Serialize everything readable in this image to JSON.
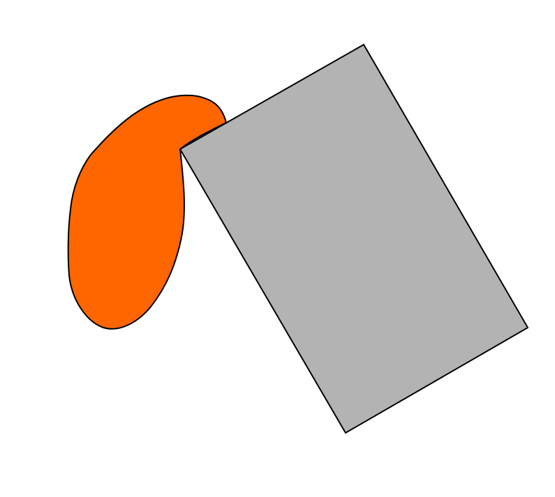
{
  "scene": {
    "background_color": "#ffffff",
    "shapes": [
      {
        "name": "orange-blob",
        "kind": "freeform-blob",
        "fill": "#ff6600",
        "stroke": "#000000"
      },
      {
        "name": "gray-rectangle",
        "kind": "rotated-rectangle",
        "fill": "#b3b3b3",
        "stroke": "#000000"
      }
    ]
  }
}
